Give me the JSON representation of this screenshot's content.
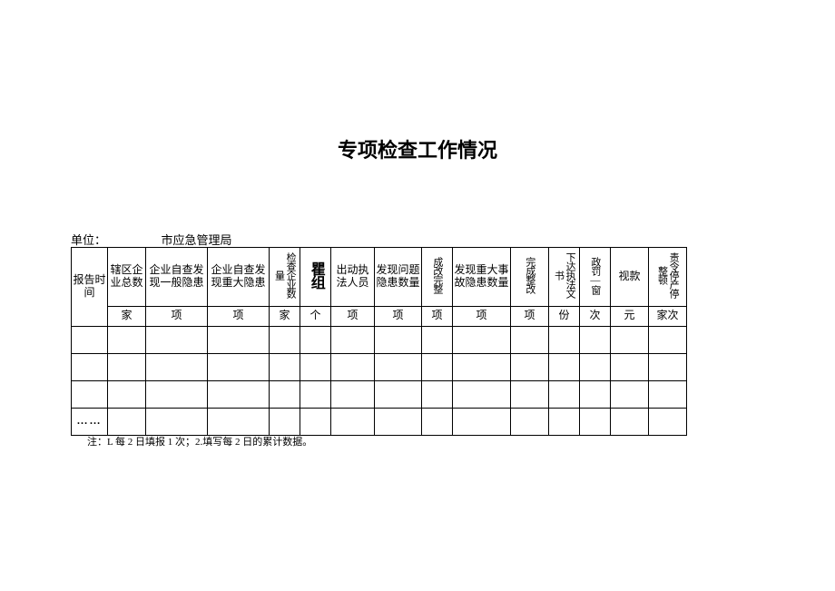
{
  "title": "专项检查工作情况",
  "unit_label": "单位：",
  "unit_suffix": "市应急管理局",
  "columns": [
    {
      "header": "报告时间",
      "unit": "",
      "width": "col-0",
      "vertical": false
    },
    {
      "header": "辖区企业总数",
      "unit": "家",
      "width": "col-1",
      "vertical": false
    },
    {
      "header": "企业自查发现一般隐患",
      "unit": "项",
      "width": "col-2",
      "vertical": false
    },
    {
      "header": "企业自查发现重大隐患",
      "unit": "项",
      "width": "col-3",
      "vertical": false
    },
    {
      "header": "检查企业数量",
      "unit": "家",
      "width": "col-4",
      "vertical": true,
      "narrow": true
    },
    {
      "header": "瞿组",
      "unit": "个",
      "width": "col-5",
      "vertical": true,
      "big": true
    },
    {
      "header": "出动执法人员",
      "unit": "项",
      "width": "col-6",
      "vertical": false
    },
    {
      "header": "发现问题隐患数量",
      "unit": "项",
      "width": "col-7",
      "vertical": false
    },
    {
      "header": "成改完整",
      "unit": "项",
      "width": "col-8",
      "vertical": true,
      "narrow": true
    },
    {
      "header": "发现重大事故隐患数量",
      "unit": "项",
      "width": "col-9",
      "vertical": false
    },
    {
      "header": "完成整改",
      "unit": "项",
      "width": "col-10",
      "vertical": true,
      "narrow": true
    },
    {
      "header": "下达执法文书",
      "unit": "份",
      "width": "col-11",
      "vertical": true,
      "narrow": true
    },
    {
      "header": "政罚—窗",
      "unit": "次",
      "width": "col-12",
      "vertical": true,
      "narrow": true
    },
    {
      "header": "视款",
      "unit": "元",
      "width": "col-13",
      "vertical": false
    },
    {
      "header": "责令停产停整顿",
      "unit": "家次",
      "width": "col-14",
      "vertical": true,
      "narrow": true
    }
  ],
  "data_rows": [
    "",
    "",
    "",
    "……"
  ],
  "footnote": "注：L 每 2 日填报 1 次；2.填写每 2 日的累计数据。",
  "styling": {
    "page_bg": "#ffffff",
    "border_color": "#000000",
    "text_color": "#000000",
    "title_fontsize": 22,
    "body_fontsize": 12,
    "footnote_fontsize": 11
  }
}
